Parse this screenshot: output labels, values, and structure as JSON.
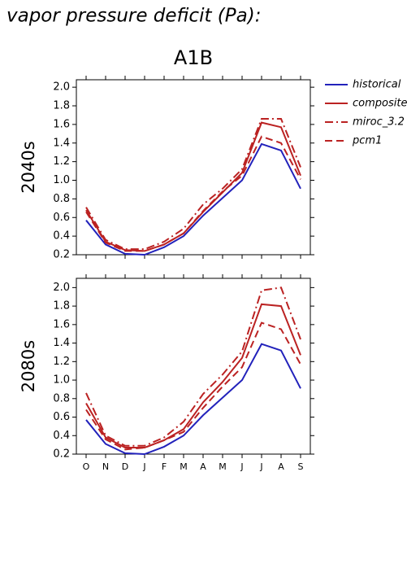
{
  "heading": "vapor pressure deficit (Pa):",
  "chart_data": [
    {
      "type": "line",
      "title": "A1B",
      "ylabel": "2040s",
      "legend": "right",
      "ylim": [
        0.2,
        2.08
      ],
      "yticks": [
        0.2,
        0.4,
        0.6,
        0.8,
        {
          "value": 1,
          "label": "1.0"
        },
        1.2,
        1.4,
        1.6,
        1.8,
        {
          "value": 2,
          "label": "2.0"
        }
      ],
      "series": [
        {
          "name": "historical",
          "color": "#2222bb",
          "dash": "solid",
          "values": [
            0.57,
            0.31,
            0.21,
            0.2,
            0.28,
            0.4,
            0.62,
            0.81,
            1.0,
            1.39,
            1.32,
            0.91
          ]
        },
        {
          "name": "composite",
          "color": "#bb2222",
          "dash": "solid",
          "values": [
            0.68,
            0.34,
            0.25,
            0.24,
            0.31,
            0.43,
            0.66,
            0.87,
            1.08,
            1.62,
            1.57,
            1.05
          ]
        },
        {
          "name": "miroc_3.2",
          "color": "#bb2222",
          "dash": "dashdot",
          "values": [
            0.71,
            0.36,
            0.26,
            0.26,
            0.34,
            0.48,
            0.74,
            0.91,
            1.12,
            1.66,
            1.66,
            1.14
          ]
        },
        {
          "name": "pcm1",
          "color": "#bb2222",
          "dash": "dashed",
          "values": [
            0.66,
            0.33,
            0.24,
            0.24,
            0.31,
            0.43,
            0.67,
            0.88,
            1.05,
            1.47,
            1.4,
            1.01
          ]
        }
      ]
    },
    {
      "type": "line",
      "ylabel": "2080s",
      "categories": [
        "O",
        "N",
        "D",
        "J",
        "F",
        "M",
        "A",
        "M",
        "J",
        "J",
        "A",
        "S"
      ],
      "ylim": [
        0.2,
        2.1
      ],
      "yticks": [
        0.2,
        0.4,
        0.6,
        0.8,
        {
          "value": 1,
          "label": "1.0"
        },
        1.2,
        1.4,
        1.6,
        1.8,
        {
          "value": 2,
          "label": "2.0"
        }
      ],
      "series": [
        {
          "color": "#2222bb",
          "dash": "solid",
          "values": [
            0.57,
            0.31,
            0.21,
            0.2,
            0.28,
            0.4,
            0.62,
            0.81,
            1.0,
            1.39,
            1.32,
            0.91
          ]
        },
        {
          "color": "#bb2222",
          "dash": "solid",
          "values": [
            0.75,
            0.38,
            0.27,
            0.27,
            0.35,
            0.47,
            0.76,
            0.98,
            1.24,
            1.82,
            1.8,
            1.27
          ]
        },
        {
          "color": "#bb2222",
          "dash": "dashdot",
          "values": [
            0.86,
            0.4,
            0.29,
            0.29,
            0.38,
            0.55,
            0.85,
            1.06,
            1.31,
            1.97,
            2.0,
            1.44
          ]
        },
        {
          "color": "#bb2222",
          "dash": "dashed",
          "values": [
            0.68,
            0.36,
            0.25,
            0.27,
            0.35,
            0.44,
            0.7,
            0.93,
            1.14,
            1.62,
            1.55,
            1.17
          ]
        }
      ]
    }
  ]
}
